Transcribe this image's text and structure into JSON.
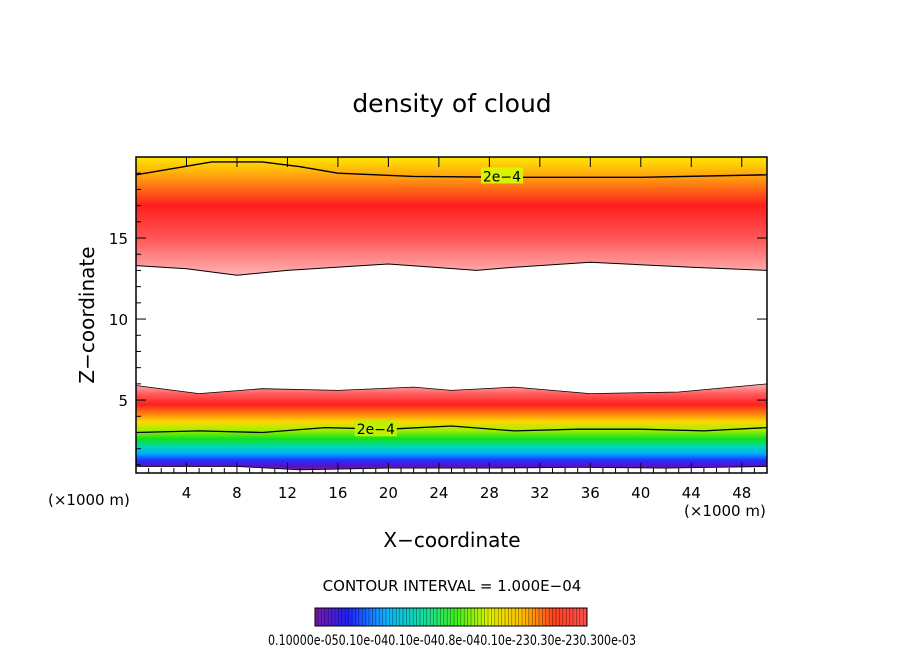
{
  "chart_data": {
    "type": "heatmap",
    "title": "density of cloud",
    "xlabel": "X−coordinate",
    "ylabel": "Z−coordinate",
    "x_unit_left": "(×1000 m)",
    "x_unit_right": "(×1000 m)",
    "xlim": [
      0,
      50
    ],
    "ylim": [
      0.5,
      20
    ],
    "xticks": [
      4,
      8,
      12,
      16,
      20,
      24,
      28,
      32,
      36,
      40,
      44,
      48
    ],
    "yticks": [
      5,
      10,
      15
    ],
    "contour_interval_text": "CONTOUR INTERVAL = 1.000E−04",
    "contour_labels": [
      {
        "text": "2e−4",
        "x": 29.0,
        "z": 18.8
      },
      {
        "text": "2e−4",
        "x": 19.0,
        "z": 3.2
      }
    ],
    "upper_layer": {
      "top_boundary": [
        [
          0,
          18.9
        ],
        [
          6,
          19.7
        ],
        [
          10,
          19.7
        ],
        [
          13,
          19.4
        ],
        [
          16,
          19.0
        ],
        [
          22,
          18.8
        ],
        [
          30,
          18.75
        ],
        [
          40,
          18.75
        ],
        [
          50,
          18.9
        ]
      ],
      "bottom_boundary": [
        [
          0,
          13.3
        ],
        [
          4,
          13.1
        ],
        [
          8,
          12.7
        ],
        [
          12,
          13.0
        ],
        [
          20,
          13.4
        ],
        [
          27,
          13.0
        ],
        [
          30,
          13.2
        ],
        [
          36,
          13.5
        ],
        [
          44,
          13.2
        ],
        [
          50,
          13.0
        ]
      ],
      "peak_z": 15.3
    },
    "lower_layer": {
      "top_boundary": [
        [
          0,
          5.9
        ],
        [
          5,
          5.4
        ],
        [
          10,
          5.7
        ],
        [
          16,
          5.6
        ],
        [
          22,
          5.8
        ],
        [
          25,
          5.6
        ],
        [
          30,
          5.8
        ],
        [
          36,
          5.4
        ],
        [
          43,
          5.5
        ],
        [
          50,
          6.0
        ]
      ],
      "contour_2e4": [
        [
          0,
          3.0
        ],
        [
          5,
          3.1
        ],
        [
          10,
          3.0
        ],
        [
          15,
          3.3
        ],
        [
          20,
          3.2
        ],
        [
          25,
          3.4
        ],
        [
          30,
          3.1
        ],
        [
          35,
          3.2
        ],
        [
          40,
          3.2
        ],
        [
          45,
          3.1
        ],
        [
          50,
          3.3
        ]
      ],
      "bottom_boundary": [
        [
          0,
          0.9
        ],
        [
          8,
          0.9
        ],
        [
          13,
          0.7
        ],
        [
          20,
          0.8
        ],
        [
          28,
          0.8
        ],
        [
          35,
          0.85
        ],
        [
          42,
          0.8
        ],
        [
          50,
          0.9
        ]
      ]
    },
    "colorbar": {
      "min": 0.0001,
      "max": 0.0003,
      "labels_text": "0.10000e-050.10e-040.10e-040.8e-040.10e-230.30e-230.300e-03"
    }
  }
}
